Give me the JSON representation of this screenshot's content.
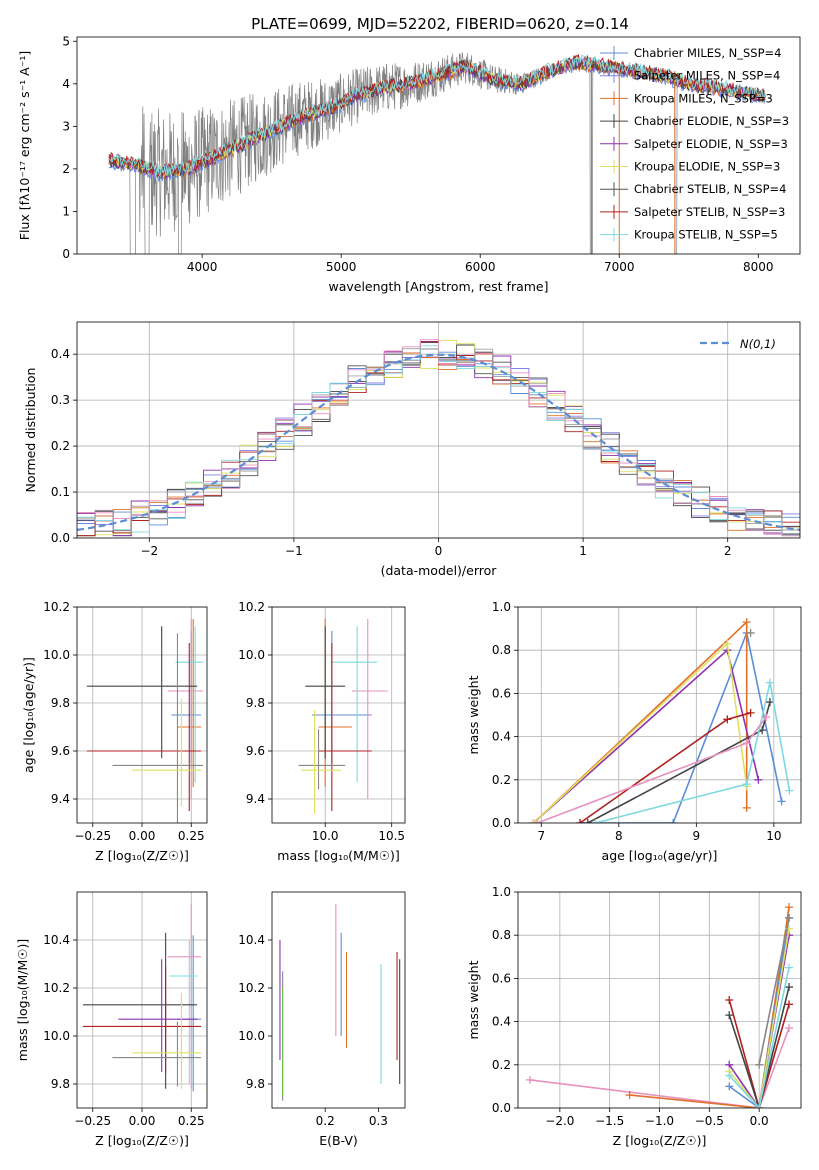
{
  "figure": {
    "title": "PLATE=0699, MJD=52202, FIBERID=0620, z=0.14"
  },
  "chart_data": [
    {
      "id": "spectrum",
      "type": "line",
      "xlabel": "wavelength [Angstrom, rest frame]",
      "ylabel": "Flux [fλ10⁻¹⁷ erg cm⁻² s⁻¹ A⁻¹]",
      "xlim": [
        3100,
        8300
      ],
      "ylim": [
        0,
        5.1
      ],
      "xticks": [
        4000,
        5000,
        6000,
        7000,
        8000
      ],
      "yticks": [
        0,
        1,
        2,
        3,
        4,
        5
      ],
      "grid": false,
      "legend_position": "top-right",
      "data_trend": {
        "x": [
          3330,
          3500,
          3700,
          3900,
          4100,
          4300,
          4500,
          4700,
          4900,
          5100,
          5300,
          5500,
          5700,
          5900,
          6100,
          6300,
          6500,
          6700,
          6900,
          7100,
          7300,
          7500,
          7700,
          7900,
          8050
        ],
        "y": [
          2.2,
          2.1,
          1.9,
          2.0,
          2.3,
          2.6,
          2.9,
          3.2,
          3.4,
          3.7,
          3.9,
          4.0,
          4.2,
          4.4,
          4.1,
          4.0,
          4.3,
          4.5,
          4.4,
          4.3,
          4.2,
          4.0,
          3.9,
          3.8,
          3.7
        ]
      },
      "series": [
        {
          "name": "Chabrier MILES, N_SSP=4",
          "color": "#5b8ed6"
        },
        {
          "name": "Salpeter MILES, N_SSP=4",
          "color": "#8080e8"
        },
        {
          "name": "Kroupa MILES, N_SSP=3",
          "color": "#e0702a"
        },
        {
          "name": "Chabrier ELODIE, N_SSP=3",
          "color": "#444444"
        },
        {
          "name": "Salpeter ELODIE, N_SSP=3",
          "color": "#9030b0"
        },
        {
          "name": "Kroupa ELODIE, N_SSP=3",
          "color": "#dfe060"
        },
        {
          "name": "Chabrier STELIB, N_SSP=4",
          "color": "#555555"
        },
        {
          "name": "Salpeter STELIB, N_SSP=3",
          "color": "#b02020"
        },
        {
          "name": "Kroupa STELIB, N_SSP=5",
          "color": "#7fd8e0"
        }
      ]
    },
    {
      "id": "residual_hist",
      "type": "line",
      "xlabel": "(data-model)/error",
      "ylabel": "Normed distribution",
      "xlim": [
        -2.5,
        2.5
      ],
      "ylim": [
        0,
        0.47
      ],
      "xticks": [
        -2,
        -1,
        0,
        1,
        2
      ],
      "yticks": [
        0.0,
        0.1,
        0.2,
        0.3,
        0.4
      ],
      "grid": true,
      "legend_position": "top-right",
      "reference_curve": {
        "name": "N(0,1)",
        "color": "#5b8ed6",
        "style": "dashed"
      },
      "series_colors": [
        "#5b8ed6",
        "#8080e8",
        "#e0702a",
        "#444444",
        "#9030b0",
        "#dfe060",
        "#555555",
        "#b02020",
        "#7fd8e0",
        "#e890c0",
        "#a0a0a0"
      ]
    },
    {
      "id": "age_vs_Z",
      "type": "scatter",
      "xlabel": "Z [log₁₀(Z/Z☉)]",
      "ylabel": "age [log₁₀(age/yr)]",
      "xlim": [
        -0.33,
        0.33
      ],
      "ylim": [
        9.3,
        10.2
      ],
      "xticks": [
        -0.25,
        0.0,
        0.25
      ],
      "yticks": [
        9.4,
        9.6,
        9.8,
        10.0,
        10.2
      ],
      "grid": true,
      "points": [
        {
          "x": 0.25,
          "y": 9.75,
          "xerr": [
            0.1,
            0.05
          ],
          "yerr": [
            0.2,
            0.35
          ],
          "color": "#5b8ed6"
        },
        {
          "x": 0.26,
          "y": 9.7,
          "xerr": [
            0.08,
            0.04
          ],
          "yerr": [
            0.25,
            0.45
          ],
          "color": "#e0702a"
        },
        {
          "x": 0.25,
          "y": 9.85,
          "xerr": [
            0.12,
            0.06
          ],
          "yerr": [
            0.45,
            0.3
          ],
          "color": "#e890c0"
        },
        {
          "x": 0.27,
          "y": 9.97,
          "xerr": [
            0.1,
            0.04
          ],
          "yerr": [
            0.5,
            0.15
          ],
          "color": "#7fd8e0"
        },
        {
          "x": 0.1,
          "y": 9.87,
          "xerr": [
            0.38,
            0.18
          ],
          "yerr": [
            0.3,
            0.25
          ],
          "color": "#444444"
        },
        {
          "x": 0.24,
          "y": 9.6,
          "xerr": [
            0.52,
            0.06
          ],
          "yerr": [
            0.25,
            0.45
          ],
          "color": "#b02020"
        },
        {
          "x": 0.18,
          "y": 9.54,
          "xerr": [
            0.33,
            0.13
          ],
          "yerr": [
            0.25,
            0.55
          ],
          "color": "#888888"
        },
        {
          "x": 0.2,
          "y": 9.52,
          "xerr": [
            0.25,
            0.1
          ],
          "yerr": [
            0.15,
            0.3
          ],
          "color": "#dfe060"
        }
      ]
    },
    {
      "id": "age_vs_mass",
      "type": "scatter",
      "xlabel": "mass [log₁₀(M/M☉)]",
      "ylabel": "",
      "xlim": [
        9.6,
        10.6
      ],
      "ylim": [
        9.3,
        10.2
      ],
      "xticks": [
        10.0,
        10.5
      ],
      "yticks": [
        9.4,
        9.6,
        9.8,
        10.0,
        10.2
      ],
      "grid": true,
      "points": [
        {
          "x": 10.05,
          "y": 9.75,
          "xerr": [
            0.15,
            0.3
          ],
          "yerr": [
            0.2,
            0.35
          ],
          "color": "#5b8ed6"
        },
        {
          "x": 10.0,
          "y": 9.7,
          "xerr": [
            0.05,
            0.2
          ],
          "yerr": [
            0.25,
            0.45
          ],
          "color": "#e0702a"
        },
        {
          "x": 10.32,
          "y": 9.85,
          "xerr": [
            0.12,
            0.15
          ],
          "yerr": [
            0.45,
            0.3
          ],
          "color": "#e890c0"
        },
        {
          "x": 10.24,
          "y": 9.97,
          "xerr": [
            0.2,
            0.15
          ],
          "yerr": [
            0.5,
            0.15
          ],
          "color": "#7fd8e0"
        },
        {
          "x": 10.0,
          "y": 9.87,
          "xerr": [
            0.15,
            0.15
          ],
          "yerr": [
            0.3,
            0.25
          ],
          "color": "#444444"
        },
        {
          "x": 10.05,
          "y": 9.6,
          "xerr": [
            0.1,
            0.3
          ],
          "yerr": [
            0.25,
            0.45
          ],
          "color": "#b02020"
        },
        {
          "x": 9.95,
          "y": 9.54,
          "xerr": [
            0.15,
            0.2
          ],
          "yerr": [
            0.1,
            0.15
          ],
          "color": "#888888"
        },
        {
          "x": 9.92,
          "y": 9.52,
          "xerr": [
            0.1,
            0.2
          ],
          "yerr": [
            0.18,
            0.25
          ],
          "color": "#dfe060"
        }
      ]
    },
    {
      "id": "massweight_vs_age",
      "type": "line",
      "xlabel": "age [log₁₀(age/yr)]",
      "ylabel": "mass weight",
      "xlim": [
        6.7,
        10.35
      ],
      "ylim": [
        0,
        1.0
      ],
      "xticks": [
        7,
        8,
        9,
        10
      ],
      "yticks": [
        0.0,
        0.2,
        0.4,
        0.6,
        0.8,
        1.0
      ],
      "grid": true,
      "series": [
        {
          "color": "#5b8ed6",
          "x": [
            7.5,
            8.7,
            9.65,
            10.1
          ],
          "y": [
            0.0,
            0.0,
            0.88,
            0.1
          ]
        },
        {
          "color": "#e0702a",
          "x": [
            6.9,
            9.65,
            9.65
          ],
          "y": [
            0.0,
            0.93,
            0.07
          ]
        },
        {
          "color": "#9030b0",
          "x": [
            6.9,
            9.4,
            9.8
          ],
          "y": [
            0.0,
            0.8,
            0.2
          ]
        },
        {
          "color": "#dfe060",
          "x": [
            6.9,
            9.4,
            9.65
          ],
          "y": [
            0.0,
            0.83,
            0.17
          ]
        },
        {
          "color": "#444444",
          "x": [
            7.6,
            9.85,
            9.95
          ],
          "y": [
            0.0,
            0.43,
            0.56
          ]
        },
        {
          "color": "#b02020",
          "x": [
            7.5,
            9.4,
            9.7
          ],
          "y": [
            0.0,
            0.48,
            0.51
          ]
        },
        {
          "color": "#7fd8e0",
          "x": [
            7.7,
            9.65,
            9.95,
            10.2
          ],
          "y": [
            0.0,
            0.18,
            0.65,
            0.15
          ]
        },
        {
          "color": "#e890c0",
          "x": [
            6.95,
            9.65,
            9.9
          ],
          "y": [
            0.0,
            0.37,
            0.49
          ]
        },
        {
          "color": "#888888",
          "x": [
            9.7
          ],
          "y": [
            0.88
          ]
        }
      ]
    },
    {
      "id": "mass_vs_Z",
      "type": "scatter",
      "xlabel": "Z [log₁₀(Z/Z☉)]",
      "ylabel": "mass [log₁₀(M/M☉)]",
      "xlim": [
        -0.33,
        0.33
      ],
      "ylim": [
        9.7,
        10.6
      ],
      "xticks": [
        -0.25,
        0.0,
        0.25
      ],
      "yticks": [
        9.8,
        10.0,
        10.2,
        10.4
      ],
      "grid": true,
      "points": [
        {
          "x": 0.26,
          "y": 10.07,
          "xerr": [
            0.08,
            0.04
          ],
          "yerr": [
            0.3,
            0.35
          ],
          "color": "#5b8ed6"
        },
        {
          "x": 0.25,
          "y": 10.33,
          "xerr": [
            0.12,
            0.05
          ],
          "yerr": [
            0.55,
            0.22
          ],
          "color": "#e890c0"
        },
        {
          "x": 0.24,
          "y": 10.25,
          "xerr": [
            0.1,
            0.04
          ],
          "yerr": [
            0.45,
            0.15
          ],
          "color": "#7fd8e0"
        },
        {
          "x": 0.12,
          "y": 10.13,
          "xerr": [
            0.42,
            0.16
          ],
          "yerr": [
            0.35,
            0.3
          ],
          "color": "#444444"
        },
        {
          "x": 0.12,
          "y": 10.04,
          "xerr": [
            0.42,
            0.18
          ],
          "yerr": [
            0.2,
            0.25
          ],
          "color": "#b02020"
        },
        {
          "x": 0.1,
          "y": 10.07,
          "xerr": [
            0.22,
            0.18
          ],
          "yerr": [
            0.22,
            0.25
          ],
          "color": "#9030b0"
        },
        {
          "x": 0.18,
          "y": 9.91,
          "xerr": [
            0.33,
            0.12
          ],
          "yerr": [
            0.12,
            0.15
          ],
          "color": "#888888"
        },
        {
          "x": 0.2,
          "y": 9.93,
          "xerr": [
            0.25,
            0.1
          ],
          "yerr": [
            0.15,
            0.25
          ],
          "color": "#dfe060"
        }
      ]
    },
    {
      "id": "mass_vs_EBV",
      "type": "scatter",
      "xlabel": "E(B-V)",
      "ylabel": "",
      "xlim": [
        0.1,
        0.35
      ],
      "ylim": [
        9.7,
        10.6
      ],
      "xticks": [
        0.2,
        0.3
      ],
      "yticks": [
        9.8,
        10.0,
        10.2,
        10.4
      ],
      "grid": false,
      "points": [
        {
          "x": 0.115,
          "y": 10.1,
          "yerr": [
            0.2,
            0.3
          ],
          "color": "#9030b0"
        },
        {
          "x": 0.12,
          "y": 10.0,
          "yerr": [
            0.27,
            0.27
          ],
          "color": "#888888"
        },
        {
          "x": 0.12,
          "y": 9.95,
          "yerr": [
            0.2,
            0.25
          ],
          "color": "#6bbf40"
        },
        {
          "x": 0.22,
          "y": 10.3,
          "yerr": [
            0.3,
            0.25
          ],
          "color": "#e890c0"
        },
        {
          "x": 0.23,
          "y": 10.2,
          "yerr": [
            0.2,
            0.23
          ],
          "color": "#5b8ed6"
        },
        {
          "x": 0.24,
          "y": 10.1,
          "yerr": [
            0.15,
            0.25
          ],
          "color": "#e0702a"
        },
        {
          "x": 0.305,
          "y": 10.05,
          "yerr": [
            0.25,
            0.25
          ],
          "color": "#7fd8e0"
        },
        {
          "x": 0.335,
          "y": 10.1,
          "yerr": [
            0.2,
            0.25
          ],
          "color": "#b02020"
        },
        {
          "x": 0.34,
          "y": 10.05,
          "yerr": [
            0.25,
            0.27
          ],
          "color": "#444444"
        }
      ]
    },
    {
      "id": "massweight_vs_Z",
      "type": "line",
      "xlabel": "Z [log₁₀(Z/Z☉)]",
      "ylabel": "mass weight",
      "xlim": [
        -2.42,
        0.42
      ],
      "ylim": [
        0,
        1.0
      ],
      "xticks": [
        -2.0,
        -1.5,
        -1.0,
        -0.5,
        0.0
      ],
      "yticks": [
        0.0,
        0.2,
        0.4,
        0.6,
        0.8,
        1.0
      ],
      "grid": true,
      "series": [
        {
          "color": "#e890c0",
          "x": [
            -2.3,
            0.0,
            0.3
          ],
          "y": [
            0.13,
            0.0,
            0.37
          ]
        },
        {
          "color": "#e0702a",
          "x": [
            -1.3,
            0.0,
            0.3
          ],
          "y": [
            0.06,
            0.0,
            0.93
          ]
        },
        {
          "color": "#b02020",
          "x": [
            -0.3,
            0.0,
            0.3
          ],
          "y": [
            0.5,
            0.0,
            0.48
          ]
        },
        {
          "color": "#444444",
          "x": [
            -0.3,
            0.0,
            0.3
          ],
          "y": [
            0.43,
            0.0,
            0.56
          ]
        },
        {
          "color": "#5b8ed6",
          "x": [
            -0.3,
            0.0,
            0.3
          ],
          "y": [
            0.1,
            0.0,
            0.88
          ]
        },
        {
          "color": "#9030b0",
          "x": [
            -0.3,
            0.0,
            0.3
          ],
          "y": [
            0.2,
            0.0,
            0.8
          ]
        },
        {
          "color": "#dfe060",
          "x": [
            -0.3,
            0.0,
            0.3
          ],
          "y": [
            0.17,
            0.0,
            0.83
          ]
        },
        {
          "color": "#7fd8e0",
          "x": [
            -0.3,
            0.0,
            0.3
          ],
          "y": [
            0.15,
            0.0,
            0.65
          ]
        },
        {
          "color": "#888888",
          "x": [
            0.0,
            0.3
          ],
          "y": [
            0.2,
            0.88
          ]
        }
      ]
    }
  ]
}
